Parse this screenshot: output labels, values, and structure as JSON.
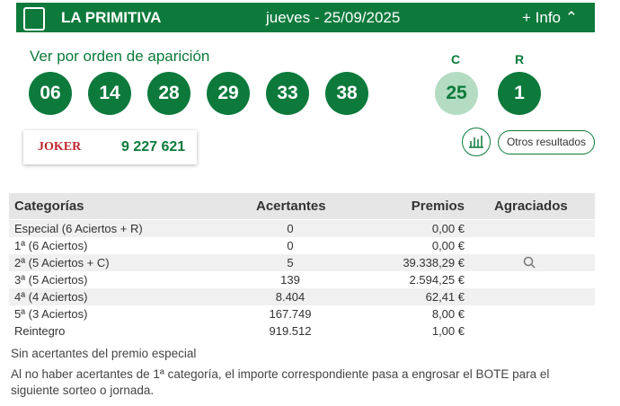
{
  "header": {
    "title": "LA PRIMITIVA",
    "date": "jueves - 25/09/2025",
    "info": "+ Info"
  },
  "order_label": "Ver por orden de aparición",
  "numbers": [
    "06",
    "14",
    "28",
    "29",
    "33",
    "38"
  ],
  "complementario": {
    "label": "C",
    "value": "25"
  },
  "reintegro": {
    "label": "R",
    "value": "1"
  },
  "joker": {
    "label": "JOKER",
    "value": "9 227 621"
  },
  "other_results": "Otros resultados",
  "table": {
    "header": [
      "Categorías",
      "Acertantes",
      "Premios",
      "Agraciados"
    ],
    "rows": [
      [
        "Especial (6 Aciertos + R)",
        "0",
        "0,00 €"
      ],
      [
        "1ª (6 Aciertos)",
        "0",
        "0,00 €"
      ],
      [
        "2ª (5 Aciertos + C)",
        "5",
        "39.338,29 €"
      ],
      [
        "3ª (5 Aciertos)",
        "139",
        "2.594,25 €"
      ],
      [
        "4ª (4 Aciertos)",
        "8.404",
        "62,41 €"
      ],
      [
        "5ª (3 Aciertos)",
        "167.749",
        "8,00 €"
      ],
      [
        "Reintegro",
        "919.512",
        "1,00 €"
      ]
    ]
  },
  "notes": [
    "Sin acertantes del premio especial",
    "Al no haber acertantes de 1ª categoría, el importe correspondiente pasa a engrosar el BOTE para el siguiente sorteo o jornada."
  ]
}
